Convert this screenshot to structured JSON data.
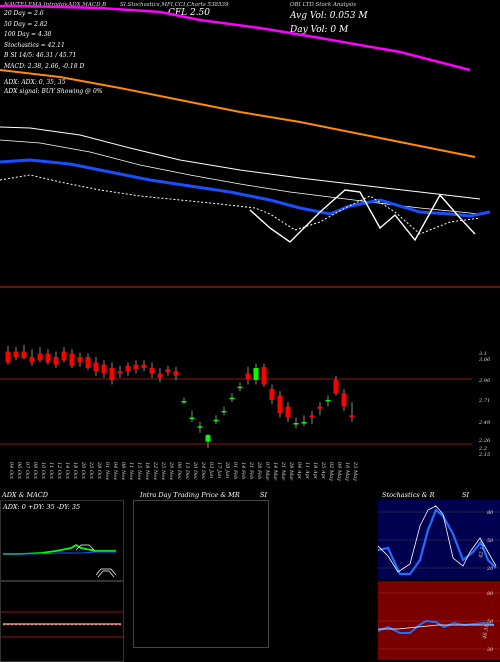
{
  "header": {
    "left_text": "NAVTEJ EMA,Intraday,ADX,MACD,B",
    "mid_text": "SI,Stochastics,MFI,CCI,Charts 538539",
    "symbol_text": "CFL 2.50",
    "right_text": "OBI LTD Stock Analysis",
    "avg_vol": "Avg Vol: 0.053  M",
    "day_vol": "Day Vol: 0  M"
  },
  "indicators": [
    "20  Day = 2.6",
    "50  Day = 2.82",
    "100  Day = 4.38",
    "Stochastics = 42.11",
    "B                    SI 14/5: 46.31 / 45.71",
    "MACD: 2.38,  2.66,  -0.18 D"
  ],
  "adx": {
    "line1": "ADX:                              ADX:  0,  35,  35",
    "line2": "ADX  signal:                                   BUY  Showing @ 0%"
  },
  "colors": {
    "up": "#00ff00",
    "down": "#ff0000",
    "ema20": "#ffffff",
    "ema50": "#1a4fff",
    "ema100": "#ff8c00",
    "ema200": "#ff00ff",
    "separator": "#8b1a0a"
  },
  "price_labels": [
    "3.1",
    "3.06",
    "2.96",
    "2.71",
    "2.49",
    "2.26",
    "2.2",
    "2.15"
  ],
  "dates": [
    "04 Oct",
    "06 Oct",
    "07 Oct",
    "08 Oct",
    "10 Oct",
    "11 Oct",
    "12 Oct",
    "14 Oct",
    "18 Oct",
    "20 Oct",
    "25 Oct",
    "28 Oct",
    "01 Nov",
    "04 Nov",
    "08 Nov",
    "11 Nov",
    "15 Nov",
    "18 Nov",
    "22 Nov",
    "25 Nov",
    "29 Nov",
    "06 Dec",
    "13 Dec",
    "20 Dec",
    "24 Dec",
    "03 Jan",
    "17 Jan",
    "28 Jan",
    "01 Feb",
    "14 Feb",
    "21 Feb",
    "28 Feb",
    "07 Mar",
    "14 Mar",
    "21 Mar",
    "28 Mar",
    "04 Apr",
    "11 Apr",
    "18 Apr",
    "25 Apr",
    "02 May",
    "09 May",
    "16 May",
    "23 May"
  ],
  "panels": {
    "adx_macd_title": "ADX  & MACD",
    "adx_values": "ADX: 0    +DY: 35  -DY: 35",
    "intraday_title": "Intra  Day Trading Price  & MR",
    "intraday_si": "SI",
    "stoch_title": "Stochastics & R",
    "stoch_si": "SI",
    "stoch_levels": [
      "80",
      "50",
      "20"
    ],
    "stoch_value": "42.11",
    "rsi_levels": [
      "80",
      "50",
      "20"
    ],
    "rsi_value": "46.31"
  },
  "chart_data": {
    "type": "candlestick",
    "dates": [
      "04 Oct",
      "06 Oct",
      "07 Oct",
      "08 Oct",
      "10 Oct",
      "11 Oct",
      "12 Oct",
      "14 Oct",
      "18 Oct",
      "20 Oct",
      "25 Oct",
      "28 Oct",
      "01 Nov",
      "04 Nov",
      "08 Nov",
      "11 Nov",
      "15 Nov",
      "18 Nov",
      "22 Nov",
      "25 Nov",
      "29 Nov",
      "06 Dec",
      "13 Dec",
      "20 Dec",
      "24 Dec",
      "03 Jan",
      "17 Jan",
      "28 Jan",
      "01 Feb",
      "14 Feb",
      "21 Feb",
      "28 Feb",
      "07 Mar",
      "14 Mar",
      "21 Mar",
      "28 Mar",
      "04 Apr",
      "11 Apr",
      "18 Apr",
      "25 Apr",
      "02 May",
      "09 May",
      "16 May",
      "23 May"
    ],
    "candles": [
      {
        "o": 3.1,
        "h": 3.15,
        "l": 2.98,
        "c": 3.0
      },
      {
        "o": 3.1,
        "h": 3.14,
        "l": 3.02,
        "c": 3.05
      },
      {
        "o": 3.1,
        "h": 3.16,
        "l": 3.03,
        "c": 3.04
      },
      {
        "o": 3.05,
        "h": 3.12,
        "l": 2.97,
        "c": 3.0
      },
      {
        "o": 3.08,
        "h": 3.14,
        "l": 3.0,
        "c": 3.02
      },
      {
        "o": 3.08,
        "h": 3.12,
        "l": 2.98,
        "c": 3.0
      },
      {
        "o": 3.05,
        "h": 3.1,
        "l": 2.95,
        "c": 2.98
      },
      {
        "o": 3.1,
        "h": 3.14,
        "l": 3.0,
        "c": 3.02
      },
      {
        "o": 3.08,
        "h": 3.12,
        "l": 2.95,
        "c": 2.97
      },
      {
        "o": 3.05,
        "h": 3.09,
        "l": 2.96,
        "c": 3.0
      },
      {
        "o": 3.05,
        "h": 3.08,
        "l": 2.93,
        "c": 2.95
      },
      {
        "o": 3.0,
        "h": 3.05,
        "l": 2.88,
        "c": 2.92
      },
      {
        "o": 2.98,
        "h": 3.02,
        "l": 2.86,
        "c": 2.9
      },
      {
        "o": 2.95,
        "h": 3.0,
        "l": 2.8,
        "c": 2.84
      },
      {
        "o": 2.92,
        "h": 2.97,
        "l": 2.86,
        "c": 2.9
      },
      {
        "o": 2.97,
        "h": 3.0,
        "l": 2.88,
        "c": 2.92
      },
      {
        "o": 2.98,
        "h": 3.02,
        "l": 2.9,
        "c": 2.94
      },
      {
        "o": 2.98,
        "h": 3.02,
        "l": 2.92,
        "c": 2.95
      },
      {
        "o": 2.95,
        "h": 3.0,
        "l": 2.86,
        "c": 2.9
      },
      {
        "o": 2.9,
        "h": 2.95,
        "l": 2.82,
        "c": 2.86
      },
      {
        "o": 2.94,
        "h": 2.97,
        "l": 2.88,
        "c": 2.91
      },
      {
        "o": 2.92,
        "h": 2.96,
        "l": 2.84,
        "c": 2.88
      },
      {
        "o": 2.65,
        "h": 2.68,
        "l": 2.62,
        "c": 2.65
      },
      {
        "o": 2.5,
        "h": 2.56,
        "l": 2.46,
        "c": 2.5
      },
      {
        "o": 2.42,
        "h": 2.46,
        "l": 2.36,
        "c": 2.42
      },
      {
        "o": 2.28,
        "h": 2.35,
        "l": 2.22,
        "c": 2.34
      },
      {
        "o": 2.48,
        "h": 2.52,
        "l": 2.44,
        "c": 2.48
      },
      {
        "o": 2.56,
        "h": 2.6,
        "l": 2.52,
        "c": 2.56
      },
      {
        "o": 2.68,
        "h": 2.72,
        "l": 2.64,
        "c": 2.68
      },
      {
        "o": 2.78,
        "h": 2.82,
        "l": 2.74,
        "c": 2.78
      },
      {
        "o": 2.9,
        "h": 2.96,
        "l": 2.8,
        "c": 2.85
      },
      {
        "o": 2.84,
        "h": 2.99,
        "l": 2.8,
        "c": 2.95
      },
      {
        "o": 2.96,
        "h": 2.99,
        "l": 2.78,
        "c": 2.8
      },
      {
        "o": 2.76,
        "h": 2.8,
        "l": 2.62,
        "c": 2.66
      },
      {
        "o": 2.7,
        "h": 2.74,
        "l": 2.5,
        "c": 2.54
      },
      {
        "o": 2.6,
        "h": 2.64,
        "l": 2.46,
        "c": 2.5
      },
      {
        "o": 2.45,
        "h": 2.5,
        "l": 2.4,
        "c": 2.45
      },
      {
        "o": 2.46,
        "h": 2.52,
        "l": 2.42,
        "c": 2.46
      },
      {
        "o": 2.52,
        "h": 2.56,
        "l": 2.44,
        "c": 2.5
      },
      {
        "o": 2.6,
        "h": 2.64,
        "l": 2.52,
        "c": 2.58
      },
      {
        "o": 2.65,
        "h": 2.7,
        "l": 2.6,
        "c": 2.66
      },
      {
        "o": 2.84,
        "h": 2.88,
        "l": 2.7,
        "c": 2.72
      },
      {
        "o": 2.72,
        "h": 2.76,
        "l": 2.56,
        "c": 2.6
      },
      {
        "o": 2.52,
        "h": 2.64,
        "l": 2.46,
        "c": 2.5
      }
    ],
    "ylim": [
      2.15,
      3.15
    ],
    "moving_averages": [
      {
        "name": "20 Day",
        "value": 2.6
      },
      {
        "name": "50 Day",
        "value": 2.82
      },
      {
        "name": "100 Day",
        "value": 4.38
      }
    ]
  }
}
